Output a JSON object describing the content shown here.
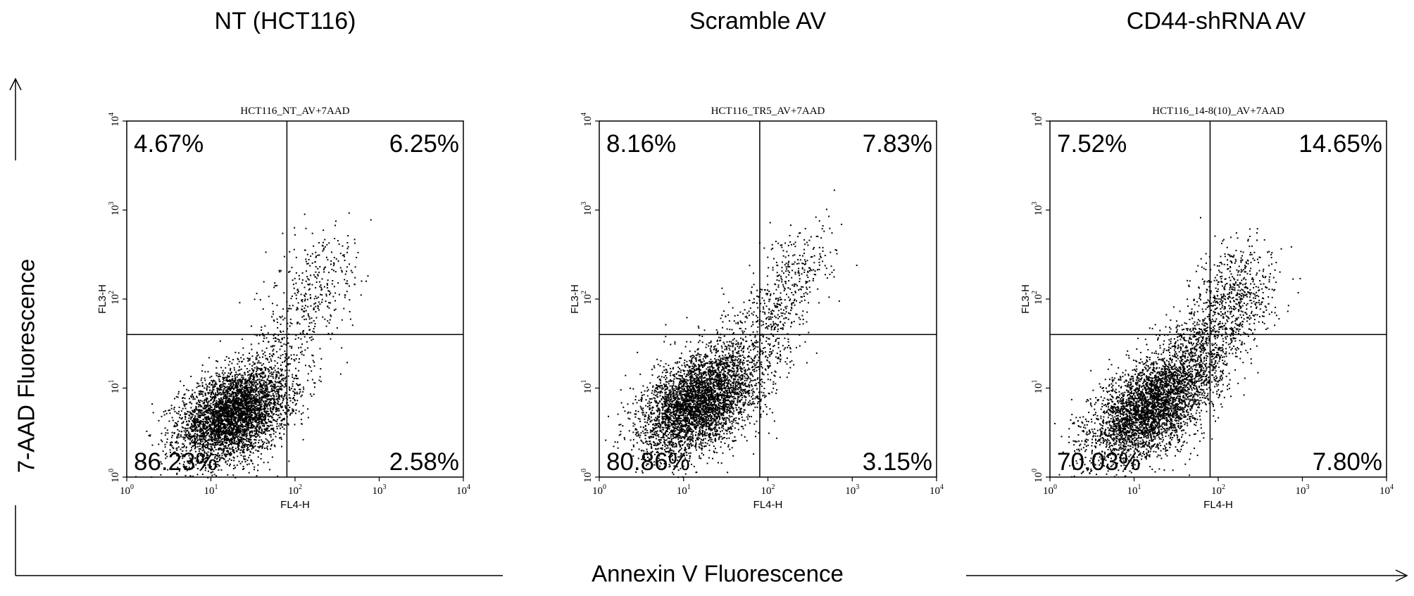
{
  "figure": {
    "y_axis_label": "7-AAD Fluorescence",
    "x_axis_label": "Annexin V Fluorescence"
  },
  "chart_data": [
    {
      "type": "scatter",
      "title": "NT (HCT116)",
      "subtitle": "HCT116_NT_AV+7AAD",
      "xlabel": "FL4-H",
      "ylabel": "FL3-H",
      "x_scale": "log",
      "y_scale": "log",
      "xlim": [
        1,
        10000
      ],
      "ylim": [
        1,
        10000
      ],
      "x_ticks": [
        {
          "base": "10",
          "exp": "0"
        },
        {
          "base": "10",
          "exp": "1"
        },
        {
          "base": "10",
          "exp": "2"
        },
        {
          "base": "10",
          "exp": "3"
        },
        {
          "base": "10",
          "exp": "4"
        }
      ],
      "y_ticks": [
        {
          "base": "10",
          "exp": "0"
        },
        {
          "base": "10",
          "exp": "1"
        },
        {
          "base": "10",
          "exp": "2"
        },
        {
          "base": "10",
          "exp": "3"
        },
        {
          "base": "10",
          "exp": "4"
        }
      ],
      "quadrant_x": 80,
      "quadrant_y": 40,
      "quadrants": {
        "upper_left": "4.67%",
        "upper_right": "6.25%",
        "lower_left": "86.23%",
        "lower_right": "2.58%"
      },
      "population": {
        "center": [
          18,
          5
        ],
        "sd_log": [
          0.32,
          0.26
        ],
        "correlation": 0.35,
        "n": 4200,
        "diagonal_tail": {
          "from": [
            40,
            8
          ],
          "to": [
            300,
            350
          ],
          "n": 600
        }
      }
    },
    {
      "type": "scatter",
      "title": "Scramble AV",
      "subtitle": "HCT116_TR5_AV+7AAD",
      "xlabel": "FL4-H",
      "ylabel": "FL3-H",
      "x_scale": "log",
      "y_scale": "log",
      "xlim": [
        1,
        10000
      ],
      "ylim": [
        1,
        10000
      ],
      "x_ticks": [
        {
          "base": "10",
          "exp": "0"
        },
        {
          "base": "10",
          "exp": "1"
        },
        {
          "base": "10",
          "exp": "2"
        },
        {
          "base": "10",
          "exp": "3"
        },
        {
          "base": "10",
          "exp": "4"
        }
      ],
      "y_ticks": [
        {
          "base": "10",
          "exp": "0"
        },
        {
          "base": "10",
          "exp": "1"
        },
        {
          "base": "10",
          "exp": "2"
        },
        {
          "base": "10",
          "exp": "3"
        },
        {
          "base": "10",
          "exp": "4"
        }
      ],
      "quadrant_x": 80,
      "quadrant_y": 40,
      "quadrants": {
        "upper_left": "8.16%",
        "upper_right": "7.83%",
        "lower_left": "80.86%",
        "lower_right": "3.15%"
      },
      "population": {
        "center": [
          15,
          7
        ],
        "sd_log": [
          0.34,
          0.3
        ],
        "correlation": 0.45,
        "n": 4000,
        "diagonal_tail": {
          "from": [
            40,
            12
          ],
          "to": [
            300,
            350
          ],
          "n": 700
        }
      }
    },
    {
      "type": "scatter",
      "title": "CD44-shRNA AV",
      "subtitle": "HCT116_14-8(10)_AV+7AAD",
      "xlabel": "FL4-H",
      "ylabel": "FL3-H",
      "x_scale": "log",
      "y_scale": "log",
      "xlim": [
        1,
        10000
      ],
      "ylim": [
        1,
        10000
      ],
      "x_ticks": [
        {
          "base": "10",
          "exp": "0"
        },
        {
          "base": "10",
          "exp": "1"
        },
        {
          "base": "10",
          "exp": "2"
        },
        {
          "base": "10",
          "exp": "3"
        },
        {
          "base": "10",
          "exp": "4"
        }
      ],
      "y_ticks": [
        {
          "base": "10",
          "exp": "0"
        },
        {
          "base": "10",
          "exp": "1"
        },
        {
          "base": "10",
          "exp": "2"
        },
        {
          "base": "10",
          "exp": "3"
        },
        {
          "base": "10",
          "exp": "4"
        }
      ],
      "quadrant_x": 80,
      "quadrant_y": 40,
      "quadrants": {
        "upper_left": "7.52%",
        "upper_right": "14.65%",
        "lower_left": "70.03%",
        "lower_right": "7.80%"
      },
      "population": {
        "center": [
          15,
          6
        ],
        "sd_log": [
          0.36,
          0.32
        ],
        "correlation": 0.55,
        "n": 3600,
        "diagonal_tail": {
          "from": [
            30,
            10
          ],
          "to": [
            250,
            200
          ],
          "n": 1300
        }
      }
    }
  ]
}
